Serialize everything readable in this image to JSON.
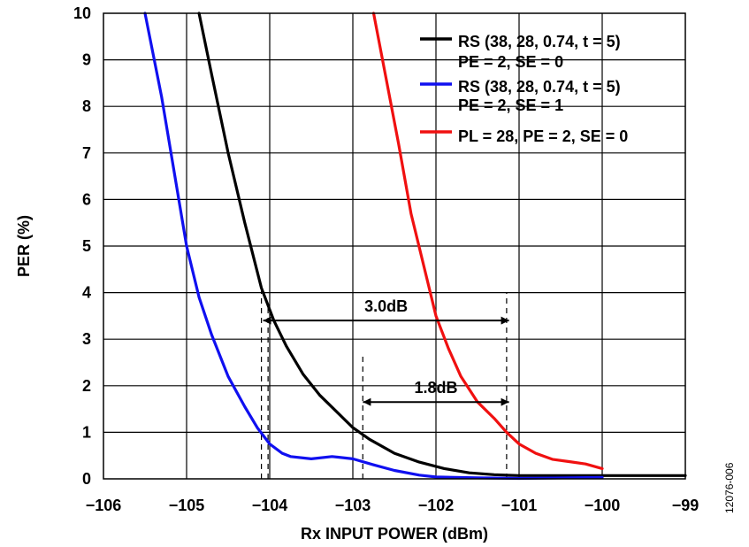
{
  "chart_data": {
    "type": "line",
    "title": "",
    "xlabel": "Rx INPUT POWER (dBm)",
    "ylabel": "PER (%)",
    "xlim": [
      -106,
      -99
    ],
    "ylim": [
      0,
      10
    ],
    "x_ticks": [
      "−106",
      "−105",
      "−104",
      "−103",
      "−102",
      "−101",
      "−100",
      "−99"
    ],
    "y_ticks": [
      "0",
      "1",
      "2",
      "3",
      "4",
      "5",
      "6",
      "7",
      "8",
      "9",
      "10"
    ],
    "grid": true,
    "legend_position": "top-right",
    "figure_id": "12076-006",
    "series": [
      {
        "name_lines": [
          "RS (38, 28, 0.74, t = 5)",
          "PE = 2, SE = 0"
        ],
        "color": "#000000",
        "x": [
          -104.85,
          -104.7,
          -104.5,
          -104.3,
          -104.1,
          -103.95,
          -103.8,
          -103.6,
          -103.4,
          -103.2,
          -103.0,
          -102.8,
          -102.5,
          -102.2,
          -101.9,
          -101.6,
          -101.3,
          -101.0,
          -100.0,
          -99.0
        ],
        "y": [
          10,
          8.7,
          7.0,
          5.5,
          4.1,
          3.4,
          2.85,
          2.25,
          1.8,
          1.45,
          1.1,
          0.85,
          0.55,
          0.36,
          0.22,
          0.13,
          0.09,
          0.07,
          0.07,
          0.07
        ]
      },
      {
        "name_lines": [
          "RS (38, 28, 0.74, t = 5)",
          "PE = 2, SE = 1"
        ],
        "color": "#1010f0",
        "x": [
          -105.5,
          -105.3,
          -105.15,
          -105.0,
          -104.85,
          -104.7,
          -104.5,
          -104.3,
          -104.15,
          -104.0,
          -103.85,
          -103.75,
          -103.5,
          -103.25,
          -103.0,
          -102.75,
          -102.5,
          -102.2,
          -102.0,
          -101.5,
          -101.0,
          -100.0
        ],
        "y": [
          10,
          8.2,
          6.6,
          5.0,
          3.9,
          3.1,
          2.2,
          1.55,
          1.1,
          0.75,
          0.55,
          0.48,
          0.43,
          0.48,
          0.43,
          0.3,
          0.18,
          0.08,
          0.04,
          0.02,
          0.01,
          0.03
        ]
      },
      {
        "name_lines": [
          "PL = 28, PE = 2, SE = 0"
        ],
        "color": "#f01010",
        "x": [
          -102.75,
          -102.6,
          -102.45,
          -102.3,
          -102.15,
          -102.0,
          -101.85,
          -101.7,
          -101.5,
          -101.3,
          -101.15,
          -101.0,
          -100.8,
          -100.6,
          -100.4,
          -100.2,
          -100.0
        ],
        "y": [
          10,
          8.6,
          7.2,
          5.7,
          4.6,
          3.5,
          2.8,
          2.2,
          1.65,
          1.3,
          1.0,
          0.75,
          0.55,
          0.42,
          0.37,
          0.32,
          0.22
        ]
      }
    ],
    "annotations": [
      {
        "text": "3.0dB",
        "from_x": -104.1,
        "to_x": -101.1,
        "at_y": 3.4
      },
      {
        "text": "1.8dB",
        "from_x": -102.9,
        "to_x": -101.1,
        "at_y": 1.65
      }
    ],
    "dashed_markers": [
      {
        "x": -104.1,
        "y_from": 0,
        "y_to": 4.1
      },
      {
        "x": -104.02,
        "y_from": 0,
        "y_to": 3.7
      },
      {
        "x": -102.88,
        "y_from": 0,
        "y_to": 2.7
      },
      {
        "x": -101.15,
        "y_from": 0,
        "y_to": 4.0
      }
    ]
  }
}
